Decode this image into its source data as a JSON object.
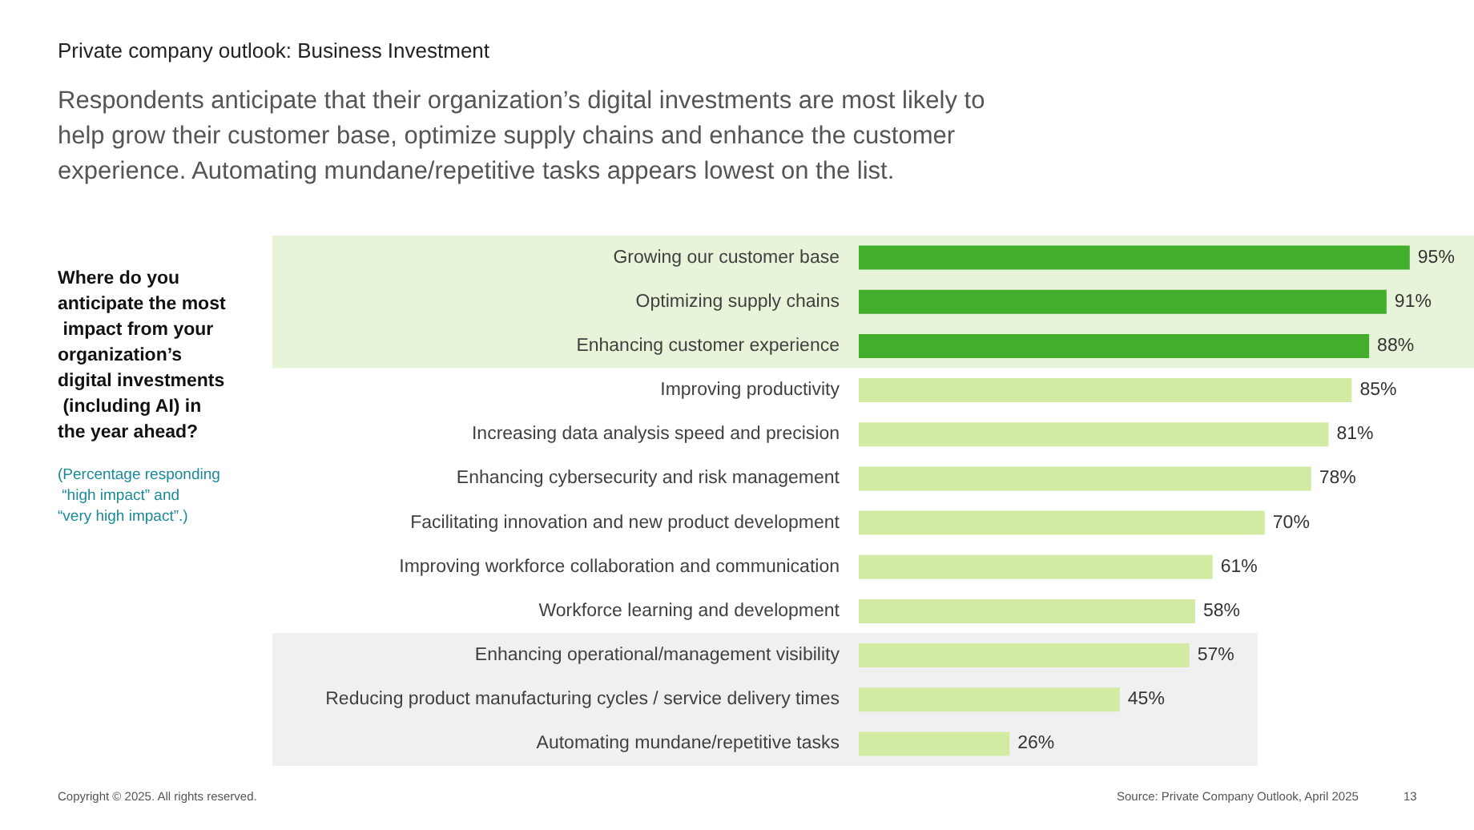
{
  "chart_data": {
    "type": "bar",
    "orientation": "horizontal",
    "title": "Private company outlook: Business Investment",
    "subtitle": "Respondents anticipate that their organization’s digital investments are most likely to help grow their customer base, optimize supply chains and enhance the customer experience. Automating mundane/repetitive tasks appears lowest on the list.",
    "categories": [
      "Growing our customer base",
      "Optimizing supply chains",
      "Enhancing customer experience",
      "Improving productivity",
      "Increasing data analysis speed and precision",
      "Enhancing cybersecurity and risk management",
      "Facilitating innovation and new product development",
      "Improving workforce collaboration and communication",
      "Workforce learning and development",
      "Enhancing operational/management visibility",
      "Reducing product manufacturing cycles / service delivery times",
      "Automating mundane/repetitive tasks"
    ],
    "values": [
      95,
      91,
      88,
      85,
      81,
      78,
      70,
      61,
      58,
      57,
      45,
      26
    ],
    "colors": [
      "#43ae2c",
      "#43ae2c",
      "#43ae2c",
      "#d3eaa2",
      "#d3eaa2",
      "#d3eaa2",
      "#d3eaa2",
      "#d3eaa2",
      "#d3eaa2",
      "#d3eaa2",
      "#d3eaa2",
      "#d3eaa2"
    ],
    "value_labels": [
      "95%",
      "91%",
      "88%",
      "85%",
      "81%",
      "78%",
      "70%",
      "61%",
      "58%",
      "57%",
      "45%",
      "26%"
    ],
    "bands": [
      {
        "axis": "y",
        "from": "Growing our customer base",
        "to": "Enhancing customer experience",
        "color": "#e8f4d9"
      },
      {
        "axis": "y",
        "from": "Enhancing operational/management visibility",
        "to": "Automating mundane/repetitive tasks",
        "color": "#f0f0f0"
      }
    ],
    "annotations": [
      "Where do you anticipate the most impact from your organization’s digital investments (including AI) in the year ahead?",
      "(Percentage responding “high impact” and “very high impact”.)",
      "Copyright © 2025. All rights reserved.",
      "Source: Private Company Outlook, April 2025",
      "13"
    ]
  }
}
